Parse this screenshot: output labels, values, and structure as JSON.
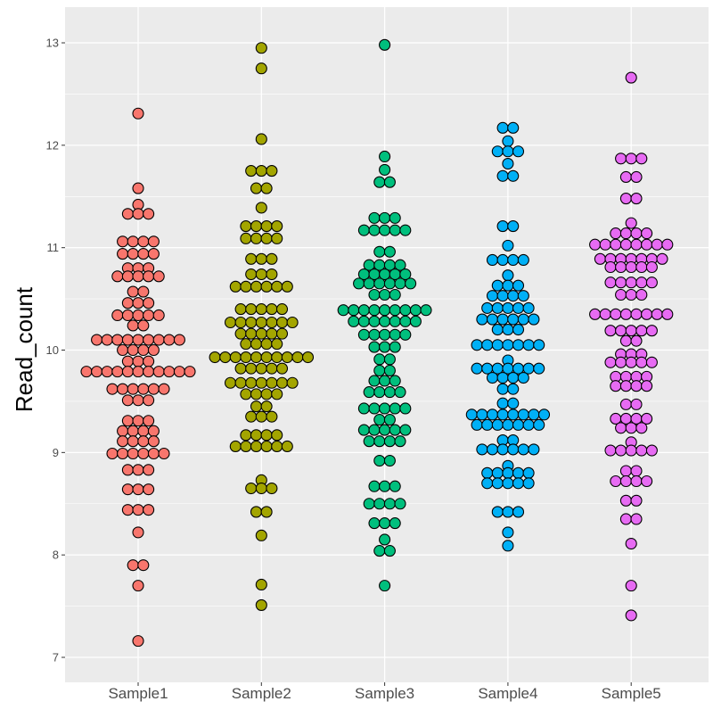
{
  "chart_data": {
    "type": "dotplot",
    "title": "",
    "xlabel": "",
    "ylabel": "Read_count",
    "ylim": [
      6.9,
      13.4
    ],
    "yticks": [
      7,
      8,
      9,
      10,
      11,
      12,
      13
    ],
    "grid": true,
    "legend": "none",
    "panel_background": "#EBEBEB",
    "categories": [
      "Sample1",
      "Sample2",
      "Sample3",
      "Sample4",
      "Sample5"
    ],
    "colors": [
      "#F8766D",
      "#A3A500",
      "#00BF7D",
      "#00B0F6",
      "#E76BF3"
    ],
    "series": [
      {
        "category": "Sample1",
        "bins": [
          [
            12.31,
            1
          ],
          [
            11.58,
            1
          ],
          [
            11.42,
            1
          ],
          [
            11.33,
            3
          ],
          [
            11.06,
            4
          ],
          [
            10.94,
            4
          ],
          [
            10.8,
            3
          ],
          [
            10.72,
            5
          ],
          [
            10.57,
            2
          ],
          [
            10.46,
            3
          ],
          [
            10.34,
            5
          ],
          [
            10.24,
            2
          ],
          [
            10.1,
            9
          ],
          [
            10.0,
            4
          ],
          [
            9.89,
            3
          ],
          [
            9.79,
            11
          ],
          [
            9.62,
            6
          ],
          [
            9.51,
            3
          ],
          [
            9.31,
            3
          ],
          [
            9.21,
            4
          ],
          [
            9.11,
            4
          ],
          [
            8.99,
            6
          ],
          [
            8.83,
            3
          ],
          [
            8.64,
            3
          ],
          [
            8.44,
            3
          ],
          [
            8.22,
            1
          ],
          [
            7.9,
            2
          ],
          [
            7.7,
            1
          ],
          [
            7.16,
            1
          ]
        ]
      },
      {
        "category": "Sample2",
        "bins": [
          [
            12.95,
            1
          ],
          [
            12.75,
            1
          ],
          [
            12.06,
            1
          ],
          [
            11.75,
            3
          ],
          [
            11.58,
            2
          ],
          [
            11.39,
            1
          ],
          [
            11.21,
            4
          ],
          [
            11.09,
            4
          ],
          [
            10.89,
            3
          ],
          [
            10.74,
            3
          ],
          [
            10.62,
            6
          ],
          [
            10.4,
            5
          ],
          [
            10.27,
            7
          ],
          [
            10.16,
            5
          ],
          [
            10.06,
            4
          ],
          [
            9.93,
            10
          ],
          [
            9.82,
            5
          ],
          [
            9.68,
            7
          ],
          [
            9.57,
            4
          ],
          [
            9.45,
            2
          ],
          [
            9.35,
            3
          ],
          [
            9.17,
            4
          ],
          [
            9.06,
            6
          ],
          [
            8.73,
            1
          ],
          [
            8.65,
            3
          ],
          [
            8.42,
            2
          ],
          [
            8.19,
            1
          ],
          [
            7.71,
            1
          ],
          [
            7.51,
            1
          ]
        ]
      },
      {
        "category": "Sample3",
        "bins": [
          [
            12.98,
            1
          ],
          [
            11.89,
            1
          ],
          [
            11.76,
            1
          ],
          [
            11.64,
            2
          ],
          [
            11.29,
            3
          ],
          [
            11.17,
            5
          ],
          [
            10.96,
            2
          ],
          [
            10.83,
            4
          ],
          [
            10.74,
            5
          ],
          [
            10.65,
            6
          ],
          [
            10.54,
            3
          ],
          [
            10.39,
            9
          ],
          [
            10.28,
            7
          ],
          [
            10.15,
            5
          ],
          [
            10.03,
            3
          ],
          [
            9.91,
            2
          ],
          [
            9.8,
            2
          ],
          [
            9.7,
            3
          ],
          [
            9.59,
            4
          ],
          [
            9.43,
            5
          ],
          [
            9.32,
            2
          ],
          [
            9.22,
            5
          ],
          [
            9.11,
            4
          ],
          [
            8.92,
            2
          ],
          [
            8.67,
            3
          ],
          [
            8.5,
            4
          ],
          [
            8.31,
            3
          ],
          [
            8.15,
            1
          ],
          [
            8.04,
            2
          ],
          [
            7.7,
            1
          ]
        ]
      },
      {
        "category": "Sample4",
        "bins": [
          [
            12.17,
            2
          ],
          [
            12.04,
            1
          ],
          [
            11.94,
            3
          ],
          [
            11.82,
            1
          ],
          [
            11.7,
            2
          ],
          [
            11.21,
            2
          ],
          [
            11.02,
            1
          ],
          [
            10.88,
            4
          ],
          [
            10.73,
            1
          ],
          [
            10.63,
            3
          ],
          [
            10.53,
            4
          ],
          [
            10.41,
            5
          ],
          [
            10.3,
            6
          ],
          [
            10.2,
            3
          ],
          [
            10.05,
            7
          ],
          [
            9.9,
            1
          ],
          [
            9.82,
            7
          ],
          [
            9.73,
            4
          ],
          [
            9.62,
            2
          ],
          [
            9.48,
            2
          ],
          [
            9.37,
            8
          ],
          [
            9.27,
            7
          ],
          [
            9.12,
            2
          ],
          [
            9.03,
            6
          ],
          [
            8.87,
            1
          ],
          [
            8.8,
            5
          ],
          [
            8.7,
            5
          ],
          [
            8.42,
            3
          ],
          [
            8.22,
            1
          ],
          [
            8.09,
            1
          ]
        ]
      },
      {
        "category": "Sample5",
        "bins": [
          [
            12.66,
            1
          ],
          [
            11.87,
            3
          ],
          [
            11.69,
            2
          ],
          [
            11.48,
            2
          ],
          [
            11.24,
            1
          ],
          [
            11.14,
            4
          ],
          [
            11.03,
            8
          ],
          [
            10.89,
            7
          ],
          [
            10.81,
            5
          ],
          [
            10.66,
            5
          ],
          [
            10.54,
            3
          ],
          [
            10.35,
            8
          ],
          [
            10.19,
            5
          ],
          [
            10.09,
            2
          ],
          [
            9.96,
            3
          ],
          [
            9.88,
            5
          ],
          [
            9.74,
            4
          ],
          [
            9.65,
            4
          ],
          [
            9.47,
            2
          ],
          [
            9.33,
            4
          ],
          [
            9.24,
            3
          ],
          [
            9.1,
            1
          ],
          [
            9.02,
            5
          ],
          [
            8.82,
            2
          ],
          [
            8.72,
            4
          ],
          [
            8.53,
            2
          ],
          [
            8.35,
            2
          ],
          [
            8.11,
            1
          ],
          [
            7.7,
            1
          ],
          [
            7.41,
            1
          ]
        ]
      }
    ]
  }
}
